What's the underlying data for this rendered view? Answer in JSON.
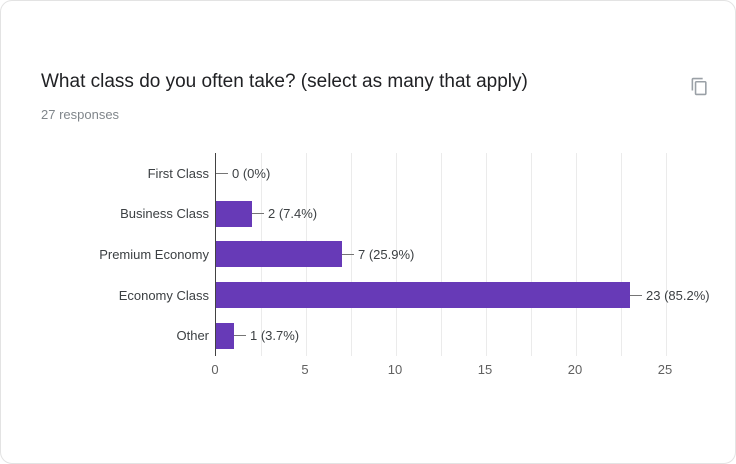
{
  "card": {
    "title": "What class do you often take? (select as many that apply)",
    "responses_label": "27 responses",
    "copy_button_icon": "copy-icon"
  },
  "colors": {
    "bar": "#673ab7",
    "title_text": "#202124",
    "secondary_text": "#80868b",
    "axis_line": "#424242",
    "gridline": "#ebebeb",
    "label_text": "#3c4043",
    "tick_text": "#616161",
    "icon": "#9aa0a6"
  },
  "chart_data": {
    "type": "bar",
    "orientation": "horizontal",
    "title": "What class do you often take? (select as many that apply)",
    "categories": [
      "First Class",
      "Business Class",
      "Premium Economy",
      "Economy Class",
      "Other"
    ],
    "values": [
      0,
      2,
      7,
      23,
      1
    ],
    "value_labels": [
      "0 (0%)",
      "2 (7.4%)",
      "7 (25.9%)",
      "23 (85.2%)",
      "1 (3.7%)"
    ],
    "x_ticks": [
      0,
      5,
      10,
      15,
      20,
      25
    ],
    "xlim": [
      0,
      25
    ],
    "gridline_step": 2.5,
    "grid": true,
    "legend": "none",
    "xlabel": "",
    "ylabel": ""
  }
}
